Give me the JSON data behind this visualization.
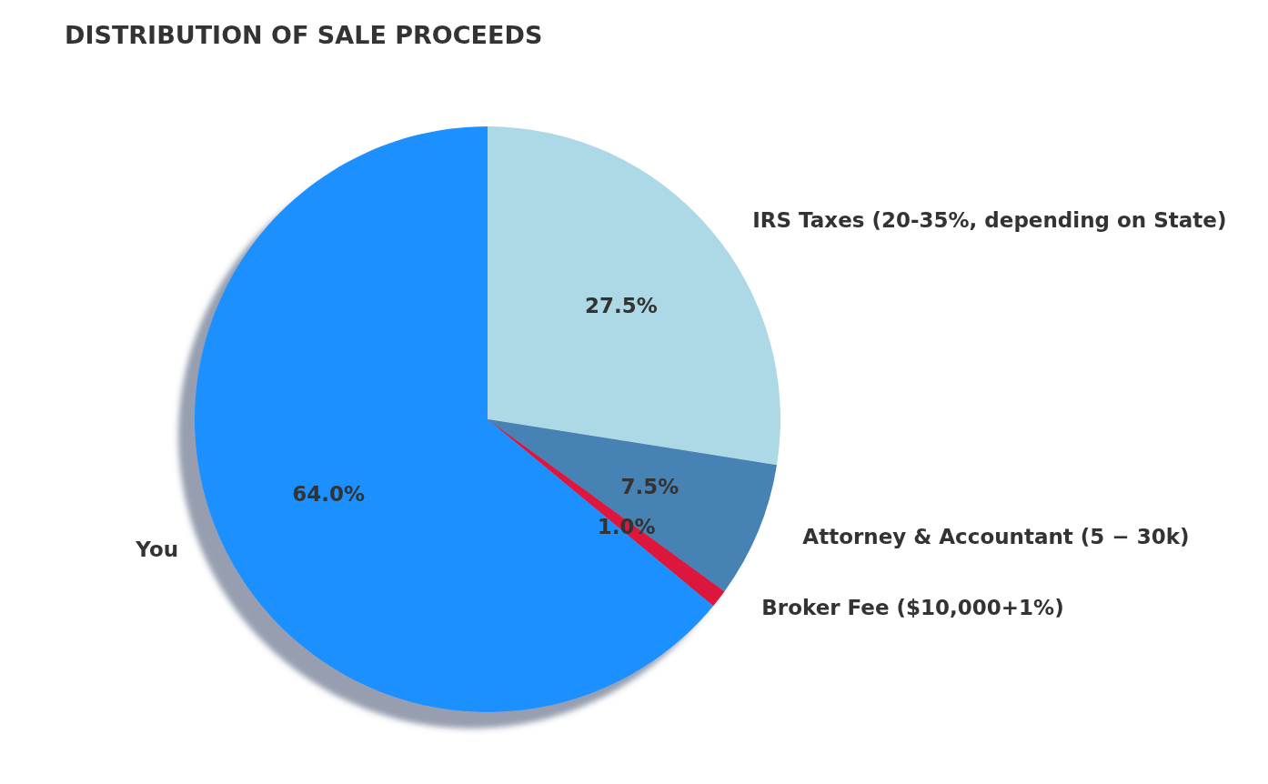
{
  "chart_data": {
    "type": "pie",
    "title": "DISTRIBUTION OF SALE PROCEEDS",
    "categories": [
      "IRS Taxes (20-35%, depending on State)",
      "Attorney & Accountant (5 − 30k)",
      "Broker Fee ($10,000+1%)",
      "You"
    ],
    "values": [
      27.5,
      7.5,
      1.0,
      64.0
    ],
    "colors": [
      "#add8e6",
      "#4682b4",
      "#dc143c",
      "#1e90ff"
    ],
    "value_labels": [
      "27.5%",
      "7.5%",
      "1.0%",
      "64.0%"
    ],
    "legend": false
  }
}
